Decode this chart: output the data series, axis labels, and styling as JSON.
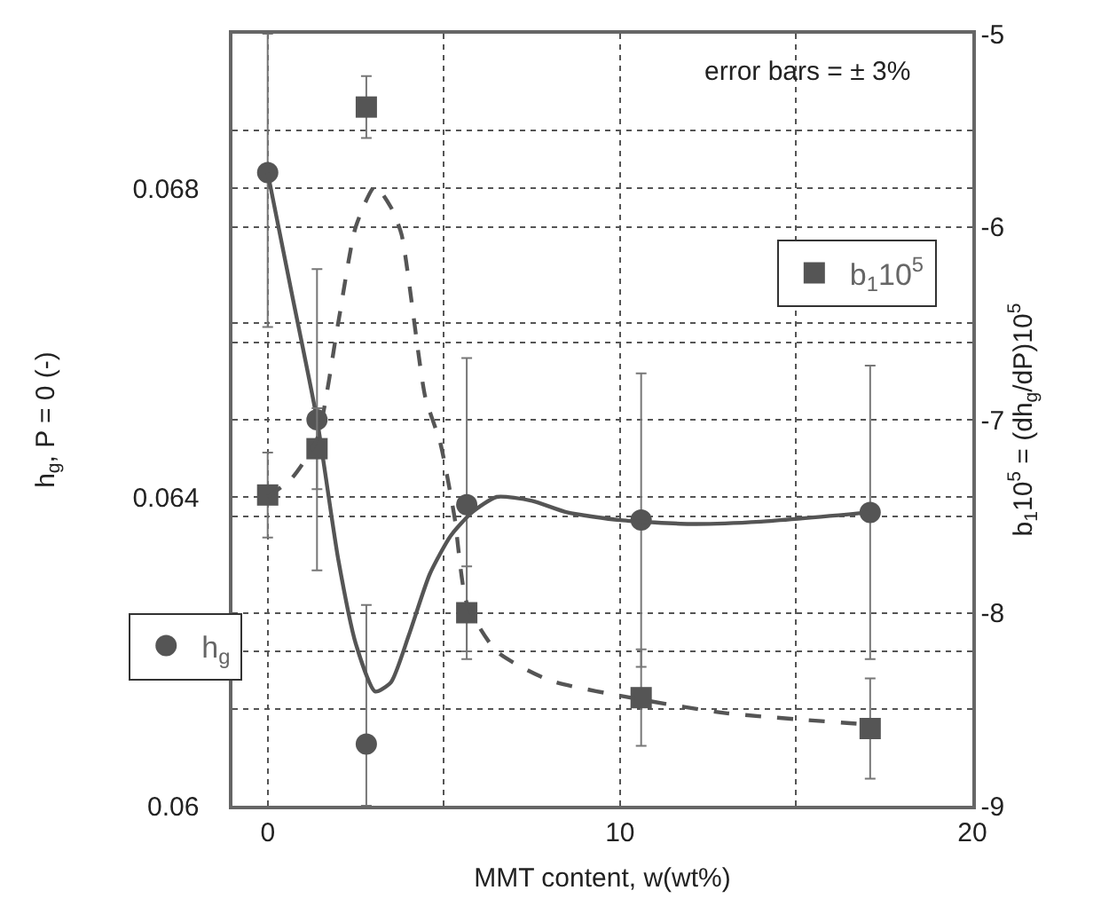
{
  "chart_data": {
    "type": "scatter",
    "xlabel": "MMT content, w(wt%)",
    "ylabel": "h$_{g}$, P = 0 (-)",
    "y2label": "b$_{1}$10$^{5}$ = (dh$_{g}$/dP)10$^{5}$",
    "annotations": [
      "error bars = ± 3%"
    ],
    "x": [
      0,
      1.4,
      2.8,
      5.65,
      10.6,
      17.1
    ],
    "series": [
      {
        "name": "h$_{g}$",
        "color": "#555555",
        "marker": "circle",
        "values": [
          0.0682,
          0.065,
          0.0608,
          0.0639,
          0.0637,
          0.0638
        ],
        "errors": [
          [
            0.0662,
            0.07
          ],
          0.00195,
          [
            0.06,
            0.0626
          ],
          0.0019,
          0.0019,
          0.0019
        ]
      },
      {
        "name": "b$_{1}$10$^{5}$",
        "axis": "y2",
        "color": "#555555",
        "marker": "square",
        "values": [
          -7.39,
          -7.15,
          -5.38,
          -8.0,
          -8.44,
          -8.6
        ],
        "errors": [
          0.22,
          0.21,
          0.16,
          0.24,
          0.25,
          0.26
        ]
      },
      {
        "type": "line",
        "color": "#555555",
        "line_style": "solid",
        "x": [
          0,
          0.7,
          1.4,
          2.0,
          2.5,
          3.05,
          3.5,
          4.0,
          4.6,
          5.2,
          5.8,
          6.5,
          7.5,
          8.5,
          10,
          12,
          14,
          17.1
        ],
        "values": [
          0.0682,
          0.0666,
          0.065,
          0.0632,
          0.0621,
          0.06148,
          0.0616,
          0.0622,
          0.063,
          0.0635,
          0.0638,
          0.064,
          0.06395,
          0.0638,
          0.0637,
          0.06365,
          0.06368,
          0.0638
        ]
      },
      {
        "type": "line",
        "axis": "y2",
        "color": "#555555",
        "line_style": "dashed",
        "x": [
          0,
          0.7,
          1.4,
          2.0,
          2.5,
          3.05,
          3.5,
          3.8,
          4.47,
          4.9,
          5.3,
          5.65,
          6.5,
          8,
          10.6,
          13,
          17.1
        ],
        "values": [
          -7.4,
          -7.3,
          -7.1,
          -6.5,
          -6.0,
          -5.79,
          -5.9,
          -6.04,
          -6.88,
          -7.12,
          -7.5,
          -7.95,
          -8.2,
          -8.35,
          -8.45,
          -8.52,
          -8.58
        ]
      }
    ],
    "xlim": [
      -1,
      20
    ],
    "xticks": [
      0,
      {
        "value": 5,
        "label": null
      },
      10,
      {
        "value": 15,
        "label": null
      },
      20
    ],
    "ylim": [
      0.06,
      0.07
    ],
    "yticks": [
      0.06,
      {
        "value": 0.062,
        "label": null
      },
      0.064,
      {
        "value": 0.066,
        "label": null
      },
      0.068,
      {
        "value": 0.07,
        "label": null
      }
    ],
    "y2lim": [
      -9,
      -5
    ],
    "y2ticks": [
      -9,
      {
        "value": -8.5,
        "label": null
      },
      -8,
      {
        "value": -7.5,
        "label": null
      },
      -7,
      {
        "value": -6.5,
        "label": null
      },
      -6,
      {
        "value": -5.5,
        "label": null
      },
      -5
    ],
    "grid": true,
    "legend": "left"
  }
}
